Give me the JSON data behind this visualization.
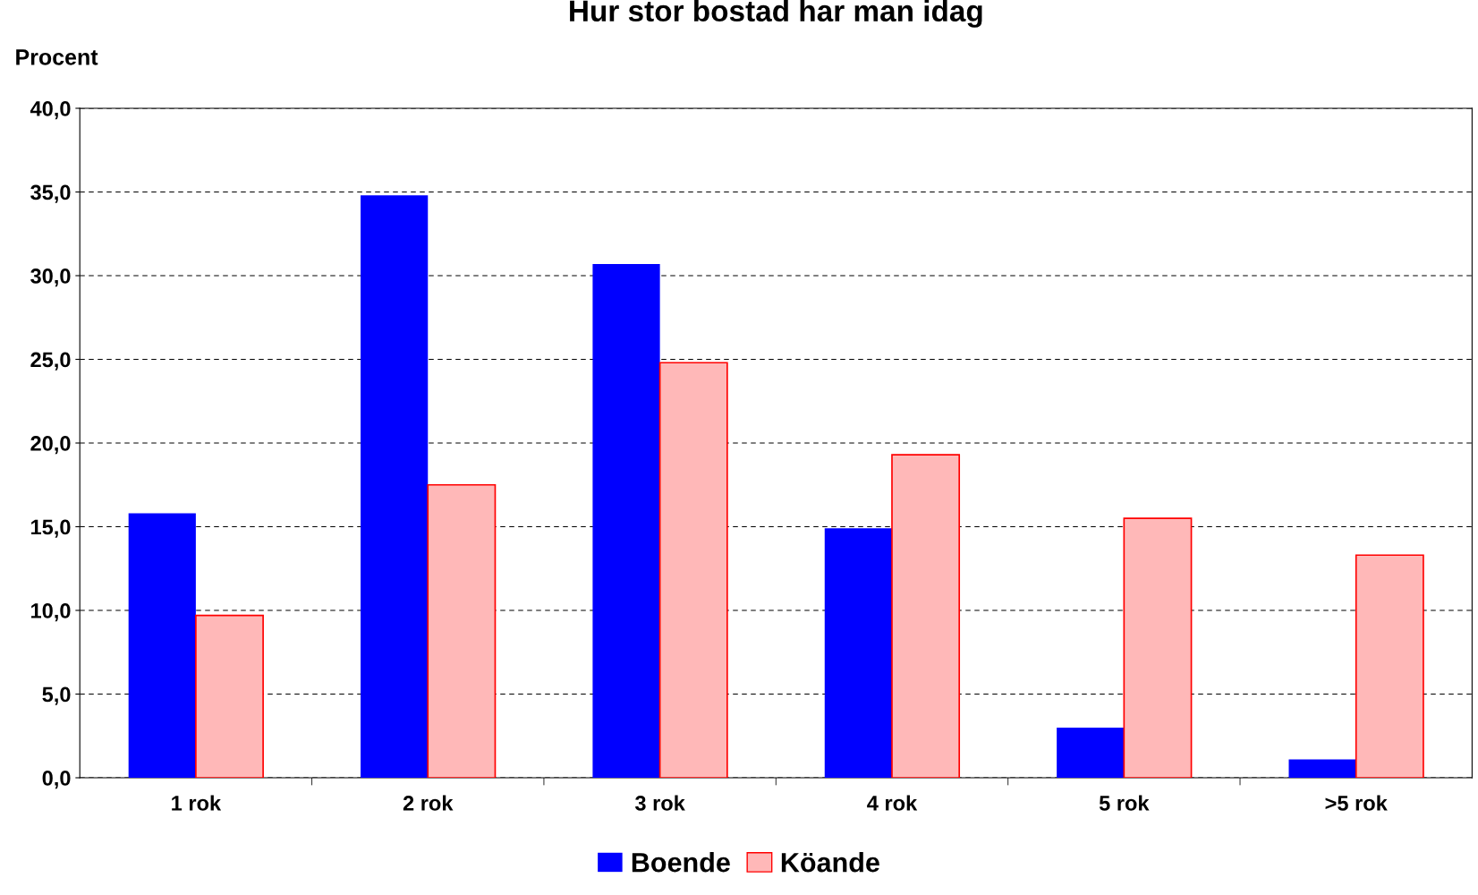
{
  "chart_data": {
    "type": "bar",
    "title": "Hur stor bostad har man idag",
    "ylabel": "Procent",
    "categories": [
      "1 rok",
      "2 rok",
      "3 rok",
      "4 rok",
      "5 rok",
      ">5 rok"
    ],
    "series": [
      {
        "name": "Boende",
        "color": "#0000ff",
        "values": [
          15.8,
          34.8,
          30.7,
          14.9,
          3.0,
          1.1
        ]
      },
      {
        "name": "Köande",
        "color": "#ffb8b8",
        "values": [
          9.7,
          17.5,
          24.8,
          19.3,
          15.5,
          13.3
        ]
      }
    ],
    "ylim": [
      0,
      40
    ],
    "yticks": [
      {
        "value": 0,
        "label": "0,0"
      },
      {
        "value": 5,
        "label": "5,0"
      },
      {
        "value": 10,
        "label": "10,0"
      },
      {
        "value": 15,
        "label": "15,0"
      },
      {
        "value": 20,
        "label": "20,0"
      },
      {
        "value": 25,
        "label": "25,0"
      },
      {
        "value": 30,
        "label": "30,0"
      },
      {
        "value": 35,
        "label": "35,0"
      },
      {
        "value": 40,
        "label": "40,0"
      }
    ],
    "grid": "y",
    "legend": "bottom"
  }
}
